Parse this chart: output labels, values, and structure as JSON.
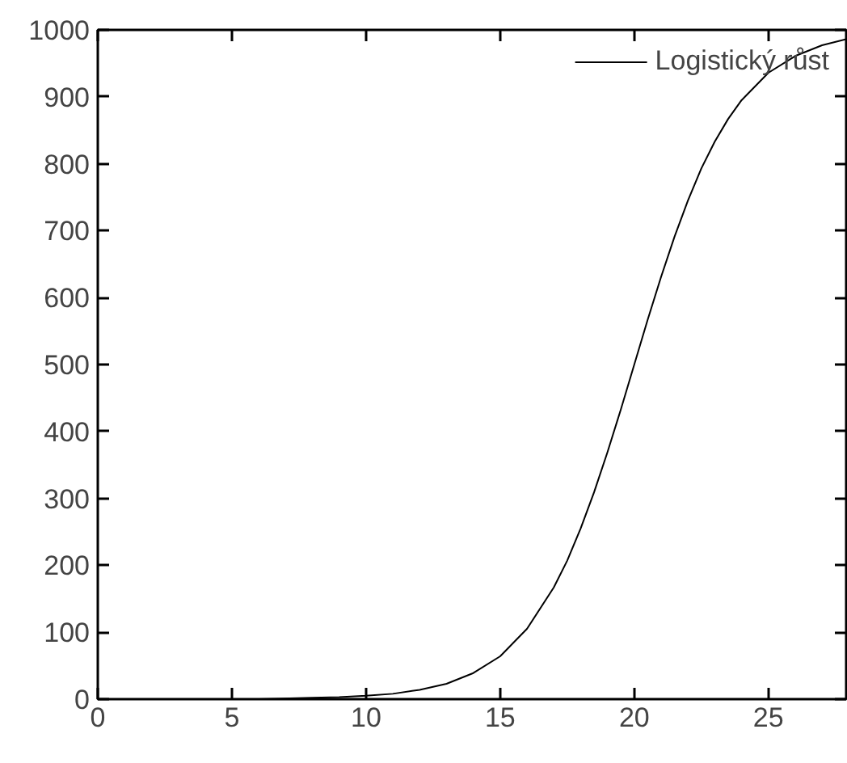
{
  "chart_data": {
    "type": "line",
    "x": [
      0,
      2,
      4,
      6,
      8,
      9,
      10,
      11,
      12,
      13,
      14,
      15,
      16,
      17,
      17.5,
      18,
      18.5,
      19,
      19.5,
      20,
      20.5,
      21,
      21.5,
      22,
      22.5,
      23,
      23.5,
      24,
      25,
      26,
      27,
      27.9
    ],
    "series": [
      {
        "name": "Logistický růst",
        "color": "#000000",
        "values": [
          0,
          0,
          0,
          0,
          2,
          3,
          5,
          8,
          14,
          23,
          39,
          64,
          105,
          167,
          207,
          255,
          309,
          369,
          433,
          500,
          567,
          631,
          691,
          745,
          793,
          833,
          867,
          895,
          936,
          961,
          977,
          986
        ]
      }
    ],
    "xlim": [
      0,
      27.9
    ],
    "ylim": [
      0,
      1000
    ],
    "xticks": [
      0,
      5,
      10,
      15,
      20,
      25
    ],
    "yticks": [
      0,
      100,
      200,
      300,
      400,
      500,
      600,
      700,
      800,
      900,
      1000
    ],
    "grid": false,
    "legend": "top right",
    "marker": "none",
    "line_style": "solid"
  }
}
